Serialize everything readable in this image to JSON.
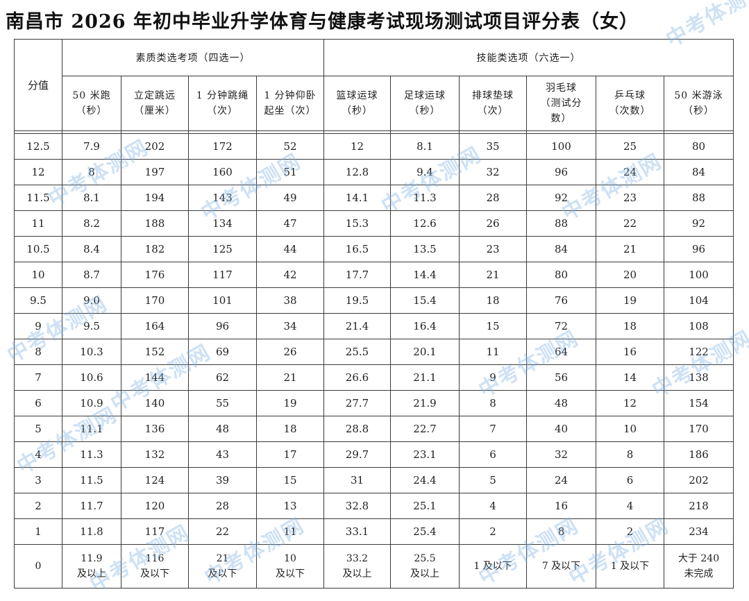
{
  "title": "南昌市 2026 年初中毕业升学体育与健康考试现场测试项目评分表（女）",
  "header": {
    "score_label": "分值",
    "group1": "素质类选考项（四选一）",
    "group2": "技能类选项（六选一）",
    "columns": [
      [
        "50 米跑",
        "（秒）"
      ],
      [
        "立定跳远",
        "（厘米）"
      ],
      [
        "1 分钟跳绳",
        "（次）"
      ],
      [
        "1 分钟仰卧",
        "起坐（次）"
      ],
      [
        "篮球运球",
        "（秒）"
      ],
      [
        "足球运球",
        "（秒）"
      ],
      [
        "排球垫球",
        "（次）"
      ],
      [
        "羽毛球",
        "（测试分",
        "数）"
      ],
      [
        "乒乓球",
        "（次数）"
      ],
      [
        "50 米游泳",
        "（秒）"
      ]
    ]
  },
  "rows": [
    [
      "12.5",
      "7.9",
      "202",
      "172",
      "52",
      "12",
      "8.1",
      "35",
      "100",
      "25",
      "80"
    ],
    [
      "12",
      "8",
      "197",
      "160",
      "51",
      "12.8",
      "9.4",
      "32",
      "96",
      "24",
      "84"
    ],
    [
      "11.5",
      "8.1",
      "194",
      "143",
      "49",
      "14.1",
      "11.3",
      "28",
      "92",
      "23",
      "88"
    ],
    [
      "11",
      "8.2",
      "188",
      "134",
      "47",
      "15.3",
      "12.6",
      "26",
      "88",
      "22",
      "92"
    ],
    [
      "10.5",
      "8.4",
      "182",
      "125",
      "44",
      "16.5",
      "13.5",
      "23",
      "84",
      "21",
      "96"
    ],
    [
      "10",
      "8.7",
      "176",
      "117",
      "42",
      "17.7",
      "14.4",
      "21",
      "80",
      "20",
      "100"
    ],
    [
      "9.5",
      "9.0",
      "170",
      "101",
      "38",
      "19.5",
      "15.4",
      "18",
      "76",
      "19",
      "104"
    ],
    [
      "9",
      "9.5",
      "164",
      "96",
      "34",
      "21.4",
      "16.4",
      "15",
      "72",
      "18",
      "108"
    ],
    [
      "8",
      "10.3",
      "152",
      "69",
      "26",
      "25.5",
      "20.1",
      "11",
      "64",
      "16",
      "122"
    ],
    [
      "7",
      "10.6",
      "144",
      "62",
      "21",
      "26.6",
      "21.1",
      "9",
      "56",
      "14",
      "138"
    ],
    [
      "6",
      "10.9",
      "140",
      "55",
      "19",
      "27.7",
      "21.9",
      "8",
      "48",
      "12",
      "154"
    ],
    [
      "5",
      "11.1",
      "136",
      "48",
      "18",
      "28.8",
      "22.7",
      "7",
      "40",
      "10",
      "170"
    ],
    [
      "4",
      "11.3",
      "132",
      "43",
      "17",
      "29.7",
      "23.1",
      "6",
      "32",
      "8",
      "186"
    ],
    [
      "3",
      "11.5",
      "124",
      "39",
      "15",
      "31",
      "24.4",
      "5",
      "24",
      "6",
      "202"
    ],
    [
      "2",
      "11.7",
      "120",
      "28",
      "13",
      "32.8",
      "25.1",
      "4",
      "16",
      "4",
      "218"
    ],
    [
      "1",
      "11.8",
      "117",
      "22",
      "11",
      "33.1",
      "25.4",
      "2",
      "8",
      "2",
      "234"
    ]
  ],
  "last_row": [
    [
      "0"
    ],
    [
      "11.9",
      "及以上"
    ],
    [
      "116",
      "及以下"
    ],
    [
      "21",
      "及以下"
    ],
    [
      "10",
      "及以下"
    ],
    [
      "33.2",
      "及以上"
    ],
    [
      "25.5",
      "及以上"
    ],
    [
      "1 及以下"
    ],
    [
      "7 及以下"
    ],
    [
      "1 及以下"
    ],
    [
      "大于 240",
      "未完成"
    ]
  ],
  "watermark": "中考体测网"
}
